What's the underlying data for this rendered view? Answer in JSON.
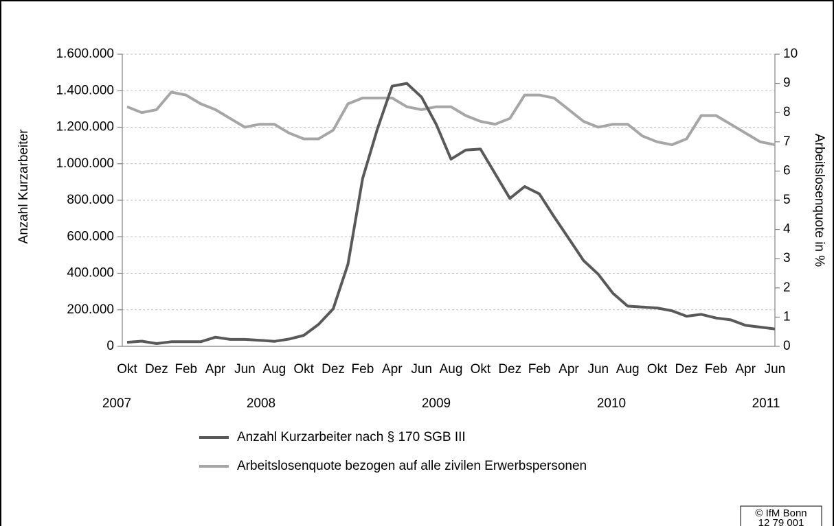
{
  "chart_data": {
    "type": "line",
    "y_label": "Anzahl Kurzarbeiter",
    "y2_label": "Arbeitslosenquote in %",
    "categories": [
      "Okt",
      null,
      "Dez",
      null,
      "Feb",
      null,
      "Apr",
      null,
      "Jun",
      null,
      "Aug",
      null,
      "Okt",
      null,
      "Dez",
      null,
      "Feb",
      null,
      "Apr",
      null,
      "Jun",
      null,
      "Aug",
      null,
      "Okt",
      null,
      "Dez",
      null,
      "Feb",
      null,
      "Apr",
      null,
      "Jun",
      null,
      "Aug",
      null,
      "Okt",
      null,
      "Dez",
      null,
      "Feb",
      null,
      "Apr",
      null,
      "Jun"
    ],
    "year_labels": [
      "2007",
      "2008",
      "2009",
      "2010",
      "2011"
    ],
    "series": [
      {
        "name": "Anzahl Kurzarbeiter nach § 170 SGB III",
        "color": "#595959",
        "values": [
          22000,
          28000,
          15000,
          25000,
          25000,
          25000,
          50000,
          38000,
          38000,
          33000,
          27000,
          40000,
          60000,
          120000,
          205000,
          450000,
          920000,
          1190000,
          1425000,
          1440000,
          1365000,
          1215000,
          1025000,
          1075000,
          1080000,
          945000,
          810000,
          875000,
          835000,
          710000,
          590000,
          470000,
          395000,
          290000,
          220000,
          215000,
          210000,
          195000,
          165000,
          175000,
          155000,
          145000,
          115000,
          105000,
          95000
        ]
      },
      {
        "name": "Arbeitslosenquote bezogen auf alle zivilen Erwerbspersonen",
        "color": "#a6a6a6",
        "axis": "y2",
        "values": [
          8.2,
          8.0,
          8.1,
          8.7,
          8.6,
          8.3,
          8.1,
          7.8,
          7.5,
          7.6,
          7.6,
          7.3,
          7.1,
          7.1,
          7.4,
          8.3,
          8.5,
          8.5,
          8.5,
          8.2,
          8.1,
          8.2,
          8.2,
          7.9,
          7.7,
          7.6,
          7.8,
          8.6,
          8.6,
          8.5,
          8.1,
          7.7,
          7.5,
          7.6,
          7.6,
          7.2,
          7.0,
          6.9,
          7.1,
          7.9,
          7.9,
          7.6,
          7.3,
          7.0,
          6.9
        ]
      }
    ],
    "ylim": [
      0,
      1600000
    ],
    "yticks": [
      0,
      {
        "value": 200000,
        "label": "200.000"
      },
      {
        "value": 400000,
        "label": "400.000"
      },
      {
        "value": 600000,
        "label": "600.000"
      },
      {
        "value": 800000,
        "label": "800.000"
      },
      {
        "value": 1000000,
        "label": "1.000.000"
      },
      {
        "value": 1200000,
        "label": "1.200.000"
      },
      {
        "value": 1400000,
        "label": "1.400.000"
      },
      {
        "value": 1600000,
        "label": "1.600.000"
      }
    ],
    "y2lim": [
      0,
      10
    ],
    "y2ticks": [
      0,
      1,
      2,
      3,
      4,
      5,
      6,
      7,
      8,
      9,
      10
    ],
    "grid": true,
    "legend": "bottom",
    "source": [
      "© IfM Bonn",
      "12 79 001"
    ]
  }
}
